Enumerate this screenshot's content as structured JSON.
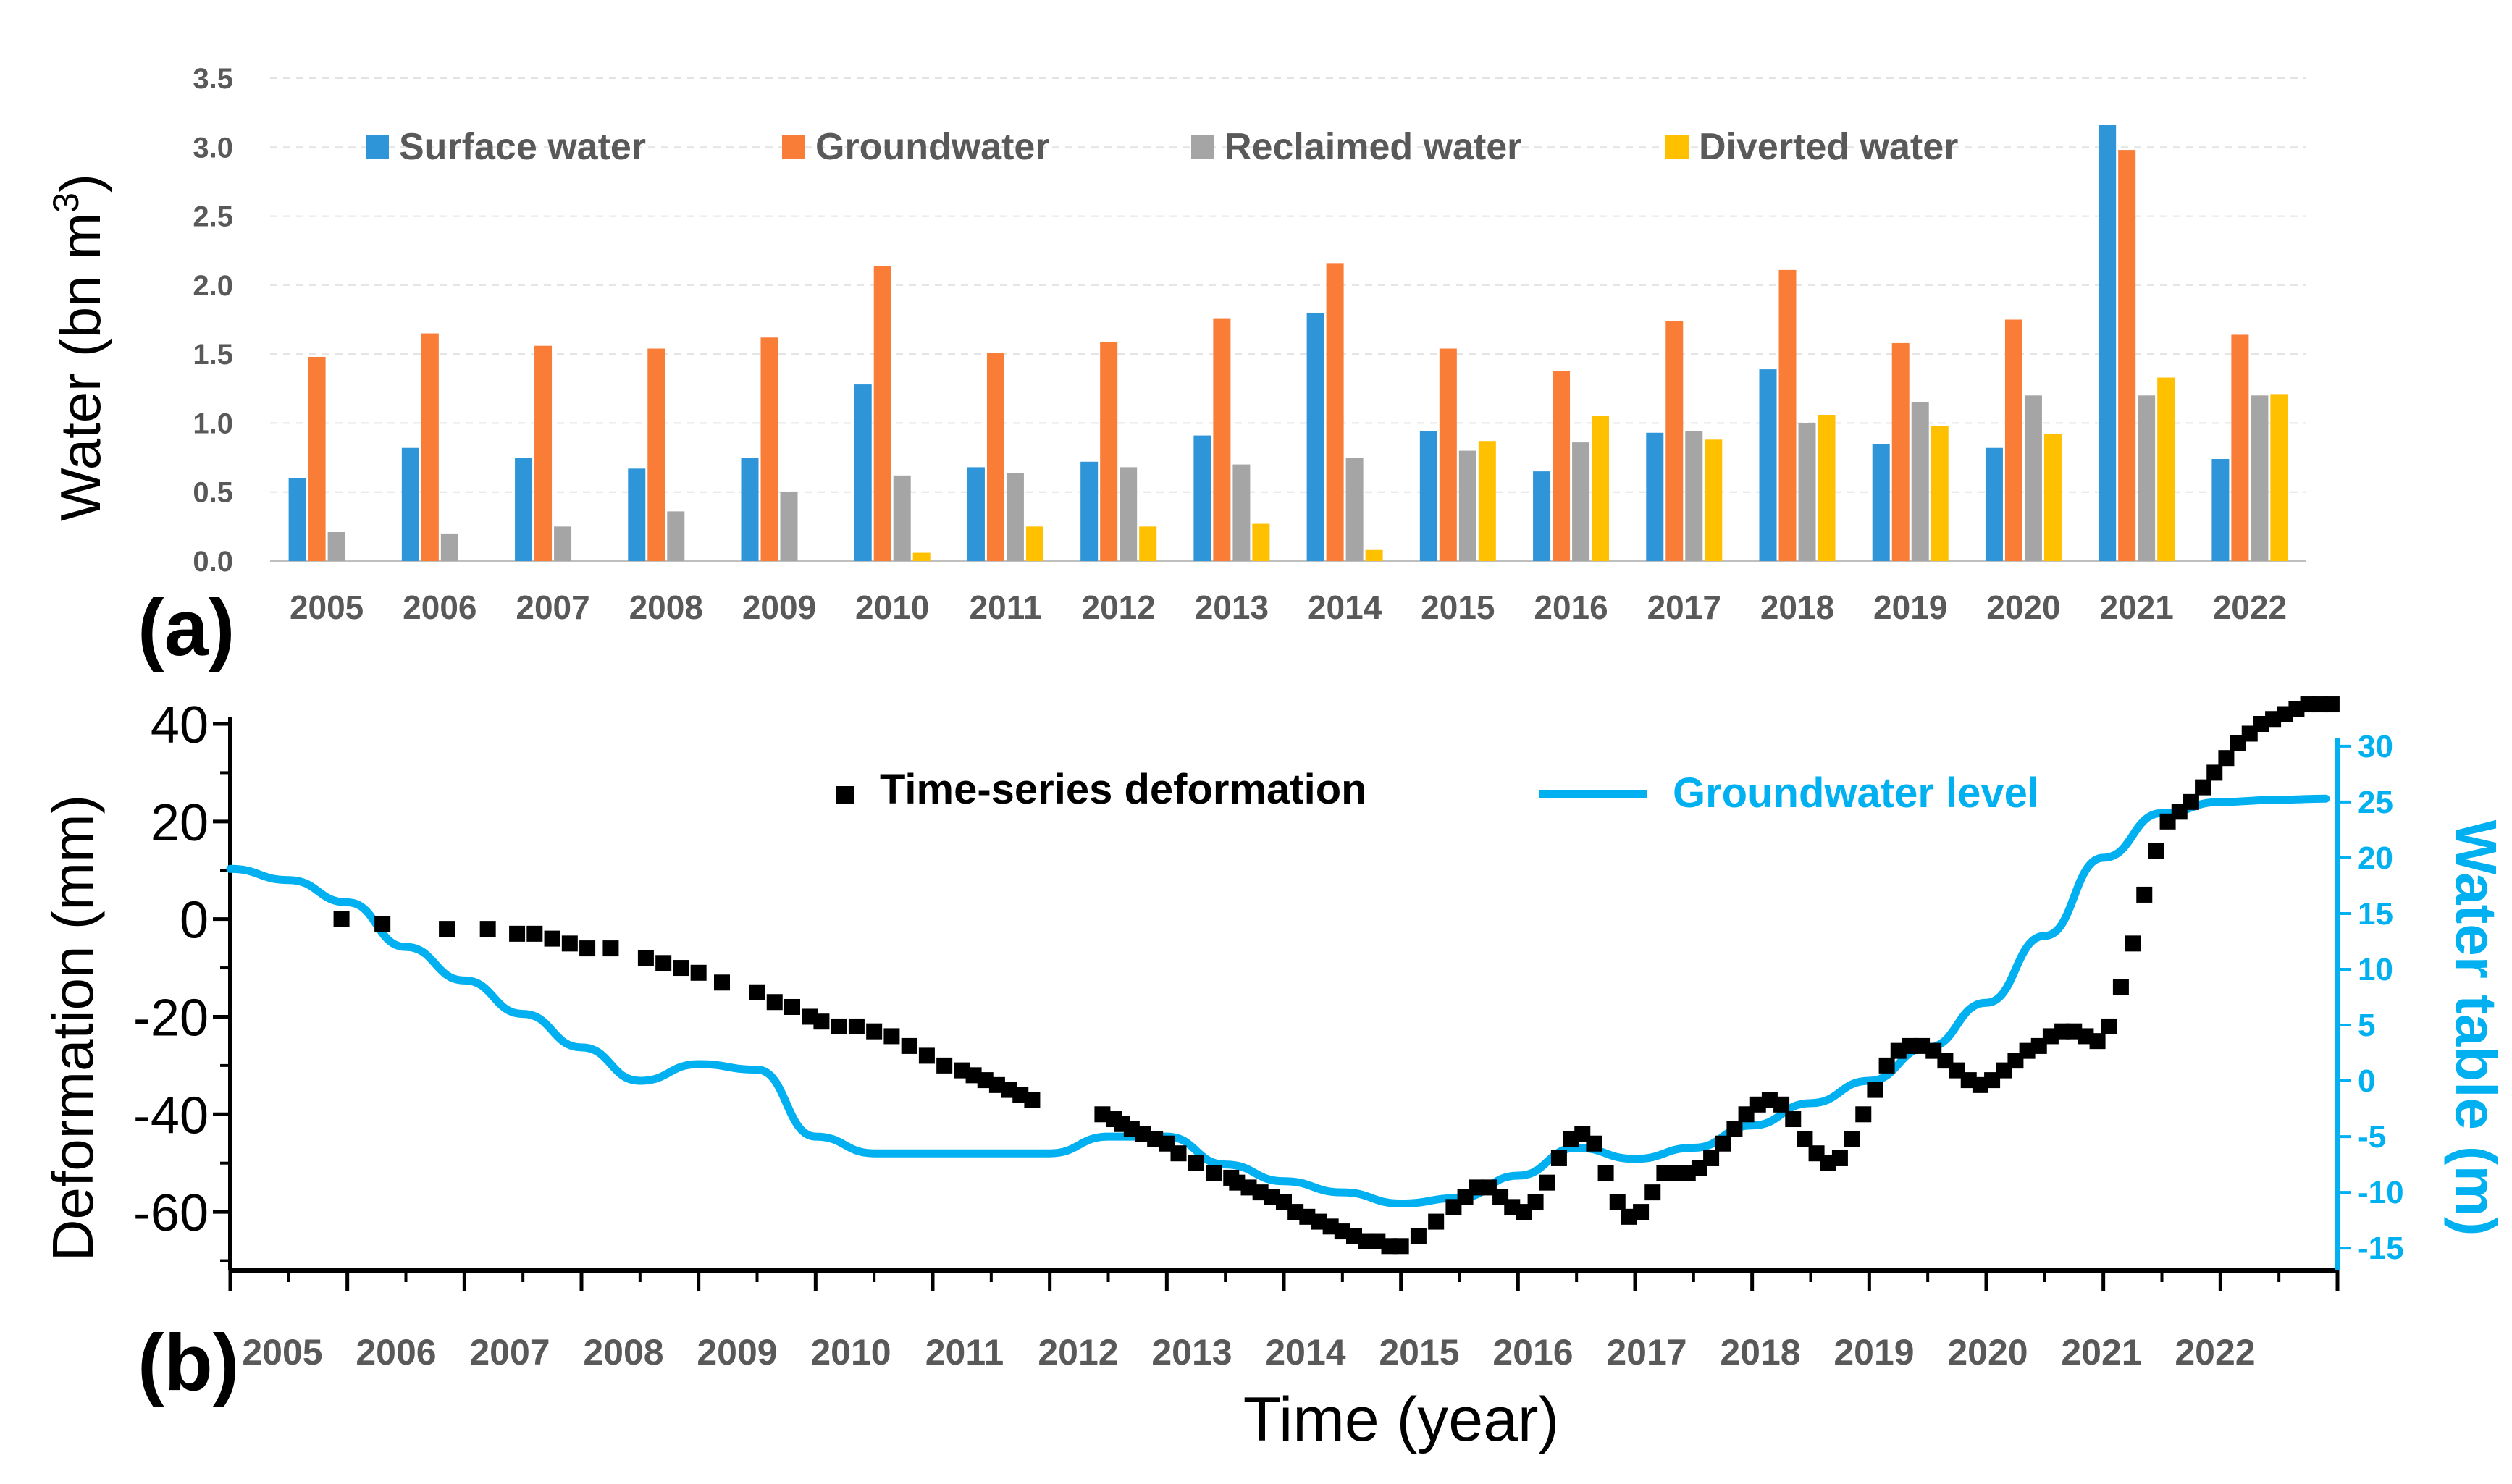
{
  "chart_data": [
    {
      "type": "bar",
      "panel_label": "(a)",
      "ylabel": "Water (bn m",
      "ylabel_sup": "3",
      "ylabel_close": ")",
      "ylim": [
        0,
        3.5
      ],
      "yticks": [
        "0.0",
        "0.5",
        "1.0",
        "1.5",
        "2.0",
        "2.5",
        "3.0",
        "3.5"
      ],
      "grid": true,
      "legend_position": "top",
      "categories": [
        "2005",
        "2006",
        "2007",
        "2008",
        "2009",
        "2010",
        "2011",
        "2012",
        "2013",
        "2014",
        "2015",
        "2016",
        "2017",
        "2018",
        "2019",
        "2020",
        "2021",
        "2022"
      ],
      "series": [
        {
          "name": "Surface water",
          "color": "#2e96d8",
          "values": [
            0.6,
            0.82,
            0.75,
            0.67,
            0.75,
            1.28,
            0.68,
            0.72,
            0.91,
            1.8,
            0.94,
            0.65,
            0.93,
            1.39,
            0.85,
            0.82,
            3.16,
            0.74
          ]
        },
        {
          "name": "Groundwater",
          "color": "#f97c37",
          "values": [
            1.48,
            1.65,
            1.56,
            1.54,
            1.62,
            2.14,
            1.51,
            1.59,
            1.76,
            2.16,
            1.54,
            1.38,
            1.74,
            2.11,
            1.58,
            1.75,
            2.98,
            1.64
          ]
        },
        {
          "name": "Reclaimed water",
          "color": "#a5a5a5",
          "values": [
            0.21,
            0.2,
            0.25,
            0.36,
            0.5,
            0.62,
            0.64,
            0.68,
            0.7,
            0.75,
            0.8,
            0.86,
            0.94,
            1.0,
            1.15,
            1.2,
            1.2,
            1.2
          ]
        },
        {
          "name": "Diverted water",
          "color": "#ffc000",
          "values": [
            0,
            0,
            0,
            0,
            0,
            0.06,
            0.25,
            0.25,
            0.27,
            0.08,
            0.87,
            1.05,
            0.88,
            1.06,
            0.98,
            0.92,
            1.33,
            1.21
          ]
        }
      ]
    },
    {
      "type": "scatter+line",
      "panel_label": "(b)",
      "xlabel": "Time (year)",
      "ylabel": "Deformation (mm)",
      "ylabel_right": "Water table (m)",
      "xlim": [
        2005,
        2023
      ],
      "ylim": [
        -72,
        40
      ],
      "ylim_right": [
        -17,
        32
      ],
      "yticks": [
        "-60",
        "-40",
        "-20",
        "0",
        "20",
        "40"
      ],
      "yticks_right": [
        "-15",
        "-10",
        "-5",
        "0",
        "5",
        "10",
        "15",
        "20",
        "25",
        "30"
      ],
      "xticks": [
        "2005",
        "2006",
        "2007",
        "2008",
        "2009",
        "2010",
        "2011",
        "2012",
        "2013",
        "2014",
        "2015",
        "2016",
        "2017",
        "2018",
        "2019",
        "2020",
        "2021",
        "2022"
      ],
      "legend_position": "top",
      "series": [
        {
          "name": "Time-series deformation",
          "color": "#000000",
          "marker": "square",
          "x": [
            2005.95,
            2006.3,
            2006.85,
            2007.2,
            2007.45,
            2007.6,
            2007.75,
            2007.9,
            2008.05,
            2008.25,
            2008.55,
            2008.7,
            2008.85,
            2009.0,
            2009.2,
            2009.5,
            2009.65,
            2009.8,
            2009.95,
            2010.05,
            2010.2,
            2010.35,
            2010.5,
            2010.65,
            2010.8,
            2010.95,
            2011.1,
            2011.25,
            2011.35,
            2011.45,
            2011.55,
            2011.65,
            2011.75,
            2011.85,
            2012.45,
            2012.55,
            2012.62,
            2012.7,
            2012.8,
            2012.9,
            2013.0,
            2013.1,
            2013.25,
            2013.4,
            2013.55,
            2013.6,
            2013.7,
            2013.8,
            2013.9,
            2014.0,
            2014.1,
            2014.2,
            2014.3,
            2014.4,
            2014.5,
            2014.6,
            2014.7,
            2014.8,
            2014.9,
            2015.0,
            2015.15,
            2015.3,
            2015.45,
            2015.55,
            2015.65,
            2015.75,
            2015.85,
            2015.95,
            2016.05,
            2016.15,
            2016.25,
            2016.35,
            2016.45,
            2016.55,
            2016.65,
            2016.75,
            2016.85,
            2016.95,
            2017.05,
            2017.15,
            2017.25,
            2017.35,
            2017.45,
            2017.55,
            2017.65,
            2017.75,
            2017.85,
            2017.95,
            2018.05,
            2018.15,
            2018.25,
            2018.35,
            2018.45,
            2018.55,
            2018.65,
            2018.75,
            2018.85,
            2018.95,
            2019.05,
            2019.15,
            2019.25,
            2019.35,
            2019.45,
            2019.55,
            2019.65,
            2019.75,
            2019.85,
            2019.95,
            2020.05,
            2020.15,
            2020.25,
            2020.35,
            2020.45,
            2020.55,
            2020.65,
            2020.75,
            2020.85,
            2020.95,
            2021.05,
            2021.15,
            2021.25,
            2021.35,
            2021.45,
            2021.55,
            2021.65,
            2021.75,
            2021.85,
            2021.95,
            2022.05,
            2022.15,
            2022.25,
            2022.35,
            2022.45,
            2022.55,
            2022.65,
            2022.75,
            2022.85,
            2022.95
          ],
          "y": [
            0,
            -1,
            -2,
            -2,
            -3,
            -3,
            -4,
            -5,
            -6,
            -6,
            -8,
            -9,
            -10,
            -11,
            -13,
            -15,
            -17,
            -18,
            -20,
            -21,
            -22,
            -22,
            -23,
            -24,
            -26,
            -28,
            -30,
            -31,
            -32,
            -33,
            -34,
            -35,
            -36,
            -37,
            -40,
            -41,
            -42,
            -43,
            -44,
            -45,
            -46,
            -48,
            -50,
            -52,
            -53,
            -54,
            -55,
            -56,
            -57,
            -58,
            -60,
            -61,
            -62,
            -63,
            -64,
            -65,
            -66,
            -66,
            -67,
            -67,
            -65,
            -62,
            -59,
            -57,
            -55,
            -55,
            -57,
            -59,
            -60,
            -58,
            -54,
            -49,
            -45,
            -44,
            -46,
            -52,
            -58,
            -61,
            -60,
            -56,
            -52,
            -52,
            -52,
            -51,
            -49,
            -46,
            -43,
            -40,
            -38,
            -37,
            -38,
            -41,
            -45,
            -48,
            -50,
            -49,
            -45,
            -40,
            -35,
            -30,
            -27,
            -26,
            -26,
            -27,
            -29,
            -31,
            -33,
            -34,
            -33,
            -31,
            -29,
            -27,
            -26,
            -24,
            -23,
            -23,
            -24,
            -25,
            -22,
            -14,
            -5,
            5,
            14,
            20,
            22,
            24,
            27,
            30,
            33,
            36,
            38,
            40,
            41,
            42,
            43,
            44,
            44,
            44
          ]
        },
        {
          "name": "Groundwater level",
          "color": "#00b0f0",
          "axis": "right",
          "x": [
            2005,
            2005.5,
            2006,
            2006.5,
            2007,
            2007.5,
            2008,
            2008.5,
            2009,
            2009.5,
            2010,
            2010.5,
            2011,
            2011.5,
            2012,
            2012.5,
            2013,
            2013.5,
            2014,
            2014.5,
            2015,
            2015.5,
            2016,
            2016.5,
            2017,
            2017.5,
            2018,
            2018.5,
            2019,
            2019.5,
            2020,
            2020.5,
            2021,
            2021.5,
            2022,
            2022.5,
            2022.9
          ],
          "y": [
            19,
            18,
            16,
            12,
            9,
            6,
            3,
            0,
            1.5,
            1,
            -5,
            -6.5,
            -6.5,
            -6.5,
            -6.5,
            -5,
            -5,
            -7.5,
            -9,
            -10,
            -11,
            -10.5,
            -8.5,
            -6,
            -7,
            -6,
            -4,
            -2,
            0,
            3,
            7,
            13,
            20,
            24,
            25,
            25.2,
            25.3
          ]
        }
      ]
    }
  ]
}
